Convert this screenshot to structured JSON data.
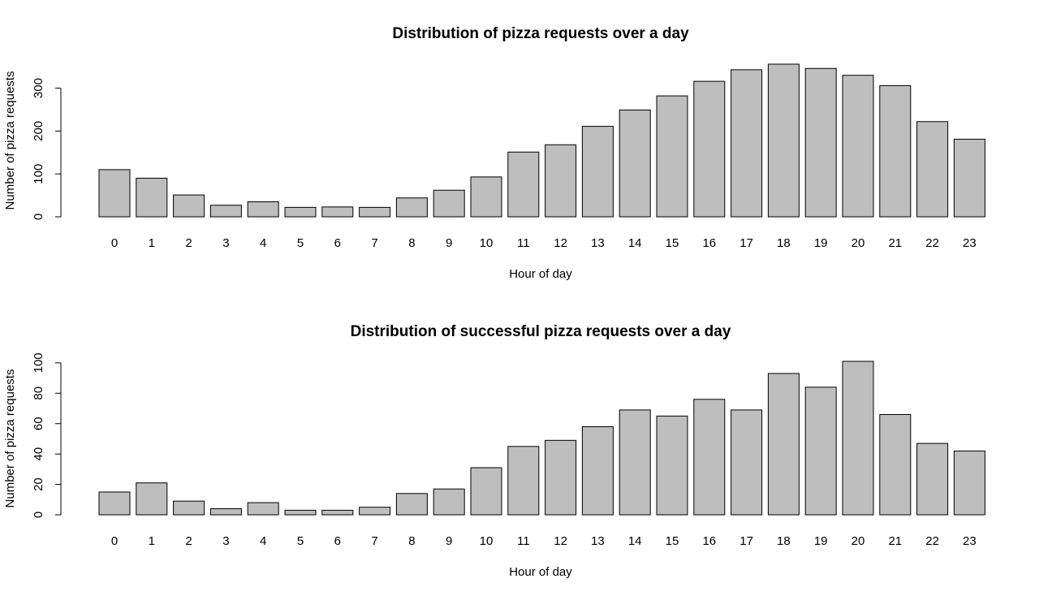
{
  "chart_data": [
    {
      "type": "bar",
      "title": "Distribution of pizza requests over a day",
      "xlabel": "Hour of day",
      "ylabel": "Number of pizza requests",
      "categories": [
        "0",
        "1",
        "2",
        "3",
        "4",
        "5",
        "6",
        "7",
        "8",
        "9",
        "10",
        "11",
        "12",
        "13",
        "14",
        "15",
        "16",
        "17",
        "18",
        "19",
        "20",
        "21",
        "22",
        "23"
      ],
      "values": [
        110,
        90,
        51,
        27,
        35,
        22,
        23,
        22,
        44,
        62,
        93,
        151,
        168,
        211,
        249,
        282,
        316,
        343,
        356,
        346,
        330,
        306,
        222,
        181
      ],
      "ylim": [
        0,
        356
      ],
      "yticks": [
        0,
        100,
        200,
        300
      ],
      "grid": false,
      "bar_color": "#bebebe",
      "edge_color": "#000000"
    },
    {
      "type": "bar",
      "title": "Distribution of successful pizza requests over a day",
      "xlabel": "Hour of day",
      "ylabel": "Number of pizza requests",
      "categories": [
        "0",
        "1",
        "2",
        "3",
        "4",
        "5",
        "6",
        "7",
        "8",
        "9",
        "10",
        "11",
        "12",
        "13",
        "14",
        "15",
        "16",
        "17",
        "18",
        "19",
        "20",
        "21",
        "22",
        "23"
      ],
      "values": [
        15,
        21,
        9,
        4,
        8,
        3,
        3,
        5,
        14,
        17,
        31,
        45,
        49,
        58,
        69,
        65,
        76,
        69,
        93,
        84,
        101,
        66,
        47,
        42
      ],
      "ylim": [
        0,
        101
      ],
      "yticks": [
        0,
        20,
        40,
        60,
        80,
        100
      ],
      "grid": false,
      "bar_color": "#bebebe",
      "edge_color": "#000000"
    }
  ]
}
